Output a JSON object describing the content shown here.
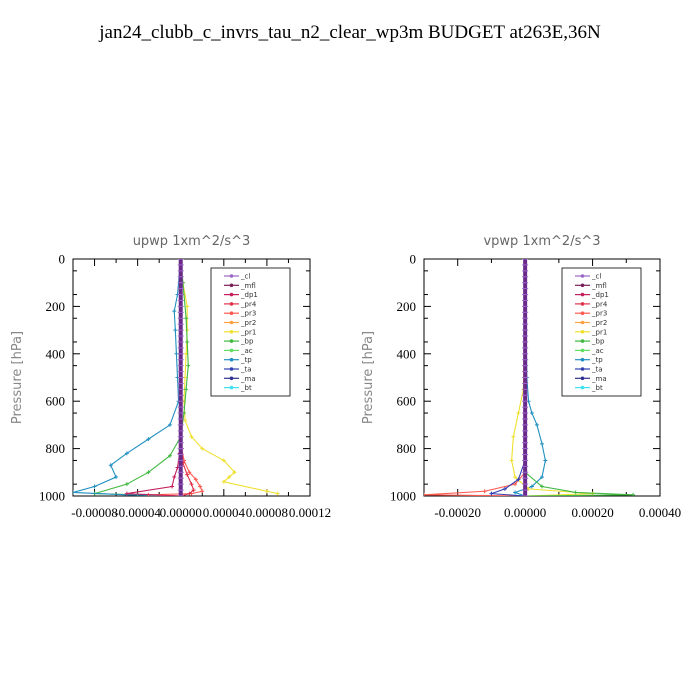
{
  "title": "jan24_clubb_c_invrs_tau_n2_clear_wp3m  BUDGET at263E,36N",
  "legend_entries": [
    {
      "name": "_cl",
      "color": "#9a66c8"
    },
    {
      "name": "_mfl",
      "color": "#7a1e5a"
    },
    {
      "name": "_dp1",
      "color": "#c4205c"
    },
    {
      "name": "_pr4",
      "color": "#e0304a"
    },
    {
      "name": "_pr3",
      "color": "#ff5a50"
    },
    {
      "name": "_pr2",
      "color": "#ffa040"
    },
    {
      "name": "_pr1",
      "color": "#f0e030"
    },
    {
      "name": "_bp",
      "color": "#40b840"
    },
    {
      "name": "_ac",
      "color": "#60e060"
    },
    {
      "name": "_tp",
      "color": "#2090c0"
    },
    {
      "name": "_ta",
      "color": "#3040b0"
    },
    {
      "name": "_ma",
      "color": "#303090"
    },
    {
      "name": "_bt",
      "color": "#40e0f0"
    }
  ],
  "chart_data": [
    {
      "type": "line",
      "title": "upwp   1xm^2/s^3",
      "ylabel": "Pressure [hPa]",
      "xlim": [
        -0.0001,
        0.00012
      ],
      "ylim": [
        1000,
        0
      ],
      "y_ticks": [
        0,
        200,
        400,
        600,
        800,
        1000
      ],
      "x_ticks": [
        {
          "value": -8e-05,
          "label": "-0.00008"
        },
        {
          "value": -4e-05,
          "label": "-0.00004"
        },
        {
          "value": 0,
          "label": "0.00000"
        },
        {
          "value": 4e-05,
          "label": "0.00004"
        },
        {
          "value": 8e-05,
          "label": "0.00008"
        },
        {
          "value": 0.00012,
          "label": "0.00012"
        }
      ],
      "legend_position": "top-right",
      "series": [
        {
          "name": "_pr1",
          "color": "#f0e030",
          "x": [
            0,
            2e-06,
            6e-06,
            6e-06,
            5e-06,
            4e-06,
            3e-06,
            4e-06,
            1e-05,
            2e-05,
            4e-05,
            5e-05,
            4.5e-05,
            4e-05,
            8e-05,
            9e-05
          ],
          "y": [
            0,
            100,
            200,
            300,
            400,
            500,
            600,
            680,
            750,
            800,
            850,
            900,
            920,
            940,
            980,
            990
          ]
        },
        {
          "name": "_bp",
          "color": "#40b840",
          "x": [
            0,
            2e-06,
            5e-06,
            6e-06,
            7e-06,
            5e-06,
            3e-06,
            0,
            -1e-05,
            -3e-05,
            -5e-05,
            -8e-05,
            -4e-05,
            0
          ],
          "y": [
            0,
            100,
            250,
            350,
            450,
            550,
            650,
            750,
            830,
            900,
            950,
            990,
            995,
            1000
          ]
        },
        {
          "name": "_tp",
          "color": "#2090c0",
          "x": [
            0,
            -3e-06,
            -6e-06,
            -5e-06,
            -4e-06,
            -3e-06,
            -2e-06,
            -1e-05,
            -3e-05,
            -5e-05,
            -6.5e-05,
            -6e-05,
            -8e-05,
            -0.0001,
            -5e-05,
            0
          ],
          "y": [
            0,
            150,
            220,
            300,
            400,
            500,
            600,
            700,
            760,
            820,
            870,
            920,
            960,
            985,
            995,
            1000
          ]
        },
        {
          "name": "_pr3",
          "color": "#ff5a50",
          "x": [
            0,
            0,
            1e-06,
            3e-06,
            8e-06,
            1.4e-05,
            1.8e-05,
            2e-05,
            1e-05,
            -3e-05,
            0
          ],
          "y": [
            0,
            600,
            800,
            850,
            900,
            930,
            960,
            980,
            990,
            995,
            1000
          ]
        },
        {
          "name": "_dp1",
          "color": "#c4205c",
          "x": [
            0,
            0,
            -1e-06,
            -3e-06,
            -6e-06,
            -8e-06,
            -5e-05,
            0
          ],
          "y": [
            0,
            700,
            820,
            880,
            920,
            960,
            990,
            1000
          ]
        },
        {
          "name": "_pr4",
          "color": "#e0304a",
          "x": [
            0,
            0,
            2e-06,
            6e-06,
            1e-05,
            1.2e-05,
            8e-06,
            0
          ],
          "y": [
            0,
            750,
            860,
            910,
            950,
            975,
            990,
            1000
          ]
        },
        {
          "name": "_mfl",
          "color": "#7a1e5a",
          "x": [
            0,
            0,
            0,
            0
          ],
          "y": [
            0,
            500,
            900,
            1000
          ]
        }
      ]
    },
    {
      "type": "line",
      "title": "vpwp   1xm^2/s^3",
      "ylabel": "Pressure [hPa]",
      "xlim": [
        -0.0003,
        0.0004
      ],
      "ylim": [
        1000,
        0
      ],
      "y_ticks": [
        0,
        200,
        400,
        600,
        800,
        1000
      ],
      "x_ticks": [
        {
          "value": -0.0002,
          "label": "-0.00020"
        },
        {
          "value": 0,
          "label": "0.00000"
        },
        {
          "value": 0.0002,
          "label": "0.00020"
        },
        {
          "value": 0.0004,
          "label": "0.00040"
        }
      ],
      "legend_position": "top-right",
      "series": [
        {
          "name": "_tp",
          "color": "#2090c0",
          "x": [
            0,
            5e-06,
            1e-05,
            2e-05,
            3.5e-05,
            5e-05,
            6e-05,
            5e-05,
            2e-05,
            -3e-05,
            0
          ],
          "y": [
            0,
            500,
            600,
            650,
            700,
            780,
            850,
            920,
            960,
            985,
            1000
          ]
        },
        {
          "name": "_pr1",
          "color": "#f0e030",
          "x": [
            0,
            -5e-06,
            -2e-05,
            -3.5e-05,
            -4e-05,
            -3e-05,
            1e-05,
            0.0002,
            0
          ],
          "y": [
            0,
            550,
            650,
            750,
            850,
            920,
            970,
            990,
            1000
          ]
        },
        {
          "name": "_bp",
          "color": "#40b840",
          "x": [
            0,
            0,
            5e-05,
            0.00015,
            0.00032,
            0
          ],
          "y": [
            0,
            900,
            960,
            985,
            995,
            1000
          ]
        },
        {
          "name": "_pr3",
          "color": "#ff5a50",
          "x": [
            0,
            0,
            -3e-05,
            -0.00012,
            -0.0003,
            0
          ],
          "y": [
            0,
            900,
            950,
            980,
            995,
            1000
          ]
        },
        {
          "name": "_ta",
          "color": "#3040b0",
          "x": [
            0,
            0,
            -2e-05,
            -6e-05,
            -0.0001,
            0
          ],
          "y": [
            0,
            850,
            930,
            970,
            990,
            1000
          ]
        },
        {
          "name": "_mfl",
          "color": "#7a1e5a",
          "x": [
            0,
            0,
            0,
            0
          ],
          "y": [
            0,
            500,
            900,
            1000
          ]
        }
      ]
    }
  ]
}
